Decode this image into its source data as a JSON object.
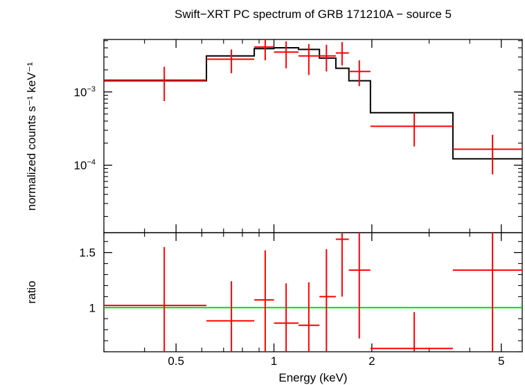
{
  "chart_data": [
    {
      "type": "scatter",
      "title": "Swift−XRT PC spectrum of GRB 171210A − source 5",
      "xlabel": "Energy (keV)",
      "ylabel": "normalized counts s⁻¹ keV⁻¹",
      "x_scale": "log",
      "y_scale": "log",
      "xlim": [
        0.3,
        5.8
      ],
      "ylim": [
        1.2e-05,
        0.0052
      ],
      "y_tick_labels": [
        {
          "value": 0.001,
          "base": "10",
          "exp": "−3"
        },
        {
          "value": 0.0001,
          "base": "10",
          "exp": "−4"
        }
      ],
      "series": [
        {
          "role": "data",
          "color": "#ff0000",
          "points": [
            {
              "x": 0.46,
              "xlo": 0.3,
              "xhi": 0.62,
              "y": 0.00145,
              "ylo": 0.00075,
              "yhi": 0.0022
            },
            {
              "x": 0.74,
              "xlo": 0.62,
              "xhi": 0.87,
              "y": 0.0028,
              "ylo": 0.0018,
              "yhi": 0.0038
            },
            {
              "x": 0.94,
              "xlo": 0.87,
              "xhi": 1.0,
              "y": 0.0041,
              "ylo": 0.0027,
              "yhi": 0.0052
            },
            {
              "x": 1.09,
              "xlo": 1.0,
              "xhi": 1.19,
              "y": 0.0035,
              "ylo": 0.0021,
              "yhi": 0.0049
            },
            {
              "x": 1.28,
              "xlo": 1.19,
              "xhi": 1.38,
              "y": 0.0031,
              "ylo": 0.0017,
              "yhi": 0.0045
            },
            {
              "x": 1.45,
              "xlo": 1.38,
              "xhi": 1.55,
              "y": 0.0031,
              "ylo": 0.0019,
              "yhi": 0.0044
            },
            {
              "x": 1.62,
              "xlo": 1.55,
              "xhi": 1.7,
              "y": 0.0034,
              "ylo": 0.0023,
              "yhi": 0.0048
            },
            {
              "x": 1.83,
              "xlo": 1.7,
              "xhi": 1.98,
              "y": 0.0019,
              "ylo": 0.0012,
              "yhi": 0.0027
            },
            {
              "x": 2.7,
              "xlo": 1.98,
              "xhi": 3.55,
              "y": 0.00034,
              "ylo": 0.00018,
              "yhi": 0.00052
            },
            {
              "x": 4.7,
              "xlo": 3.55,
              "xhi": 5.8,
              "y": 0.000165,
              "ylo": 7.5e-05,
              "yhi": 0.00026
            }
          ]
        },
        {
          "role": "model",
          "color": "#000000",
          "steps": [
            {
              "x0": 0.3,
              "x1": 0.62,
              "y": 0.00142
            },
            {
              "x0": 0.62,
              "x1": 0.87,
              "y": 0.0031
            },
            {
              "x0": 0.87,
              "x1": 1.0,
              "y": 0.0039
            },
            {
              "x0": 1.0,
              "x1": 1.19,
              "y": 0.004
            },
            {
              "x0": 1.19,
              "x1": 1.38,
              "y": 0.0038
            },
            {
              "x0": 1.38,
              "x1": 1.55,
              "y": 0.0029
            },
            {
              "x0": 1.55,
              "x1": 1.7,
              "y": 0.0021
            },
            {
              "x0": 1.7,
              "x1": 1.98,
              "y": 0.00142
            },
            {
              "x0": 1.98,
              "x1": 3.55,
              "y": 0.00052
            },
            {
              "x0": 3.55,
              "x1": 5.8,
              "y": 0.000122
            }
          ]
        }
      ]
    },
    {
      "type": "scatter",
      "ylabel": "ratio",
      "x_scale": "log",
      "y_scale": "linear",
      "xlim": [
        0.3,
        5.8
      ],
      "ylim": [
        0.6,
        1.68
      ],
      "x_tick_labels": [
        {
          "value": 0.5,
          "label": "0.5"
        },
        {
          "value": 1,
          "label": "1"
        },
        {
          "value": 2,
          "label": "2"
        },
        {
          "value": 5,
          "label": "5"
        }
      ],
      "y_tick_labels": [
        {
          "value": 1,
          "label": "1"
        },
        {
          "value": 1.5,
          "label": "1.5"
        }
      ],
      "reference_line": {
        "y": 1,
        "color": "#00dd00"
      },
      "series": [
        {
          "role": "data",
          "color": "#ff0000",
          "points": [
            {
              "x": 0.46,
              "xlo": 0.3,
              "xhi": 0.62,
              "y": 1.02,
              "ylo": 0.6,
              "yhi": 1.55
            },
            {
              "x": 0.74,
              "xlo": 0.62,
              "xhi": 0.87,
              "y": 0.88,
              "ylo": 0.6,
              "yhi": 1.24
            },
            {
              "x": 0.94,
              "xlo": 0.87,
              "xhi": 1.0,
              "y": 1.07,
              "ylo": 0.6,
              "yhi": 1.52
            },
            {
              "x": 1.09,
              "xlo": 1.0,
              "xhi": 1.19,
              "y": 0.86,
              "ylo": 0.6,
              "yhi": 1.22
            },
            {
              "x": 1.28,
              "xlo": 1.19,
              "xhi": 1.38,
              "y": 0.84,
              "ylo": 0.6,
              "yhi": 1.23
            },
            {
              "x": 1.45,
              "xlo": 1.38,
              "xhi": 1.55,
              "y": 1.1,
              "ylo": 0.6,
              "yhi": 1.53
            },
            {
              "x": 1.62,
              "xlo": 1.55,
              "xhi": 1.7,
              "y": 1.62,
              "ylo": 1.1,
              "yhi": 1.68
            },
            {
              "x": 1.83,
              "xlo": 1.7,
              "xhi": 1.98,
              "y": 1.34,
              "ylo": 0.72,
              "yhi": 1.68
            },
            {
              "x": 2.7,
              "xlo": 1.98,
              "xhi": 3.55,
              "y": 0.63,
              "ylo": 0.6,
              "yhi": 0.96
            },
            {
              "x": 4.7,
              "xlo": 3.55,
              "xhi": 5.8,
              "y": 1.34,
              "ylo": 0.6,
              "yhi": 1.68
            }
          ]
        }
      ]
    }
  ]
}
